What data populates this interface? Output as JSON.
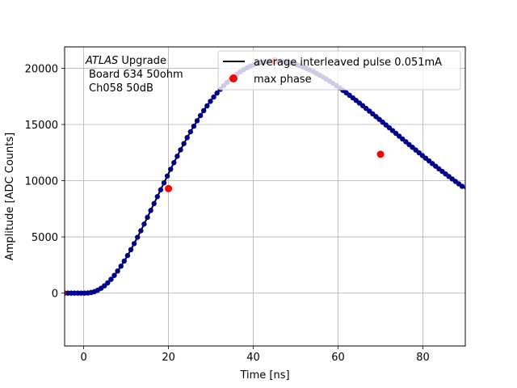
{
  "chart_data": {
    "type": "scatter",
    "xlabel": "Time [ns]",
    "ylabel": "Amplitude [ADC Counts]",
    "xlim": [
      -4.5,
      90
    ],
    "ylim": [
      -4700,
      21900
    ],
    "xticks": [
      0,
      20,
      40,
      60,
      80
    ],
    "yticks": [
      0,
      5000,
      10000,
      15000,
      20000
    ],
    "grid": true,
    "legend_position": "top-right",
    "annotation": {
      "italic": "ATLAS",
      "line1_rest": " Upgrade",
      "line2": "Board 634 50ohm",
      "line3": "Ch058 50dB"
    },
    "pulse_model": {
      "peak_time": 45,
      "peak_amplitude": 20650,
      "samples_start": -4.5,
      "samples_end": 90,
      "samples_step": 0.78125
    },
    "series": [
      {
        "name": "average interleaved pulse 0.051mA",
        "kind": "line",
        "color": "#000000"
      },
      {
        "name": "",
        "kind": "points",
        "color": "#00008b"
      },
      {
        "name": "max phase",
        "kind": "points",
        "color": "#ff0000",
        "x": [
          -5,
          20,
          45,
          70
        ],
        "y": [
          0,
          9300,
          20650,
          12350
        ]
      }
    ]
  }
}
